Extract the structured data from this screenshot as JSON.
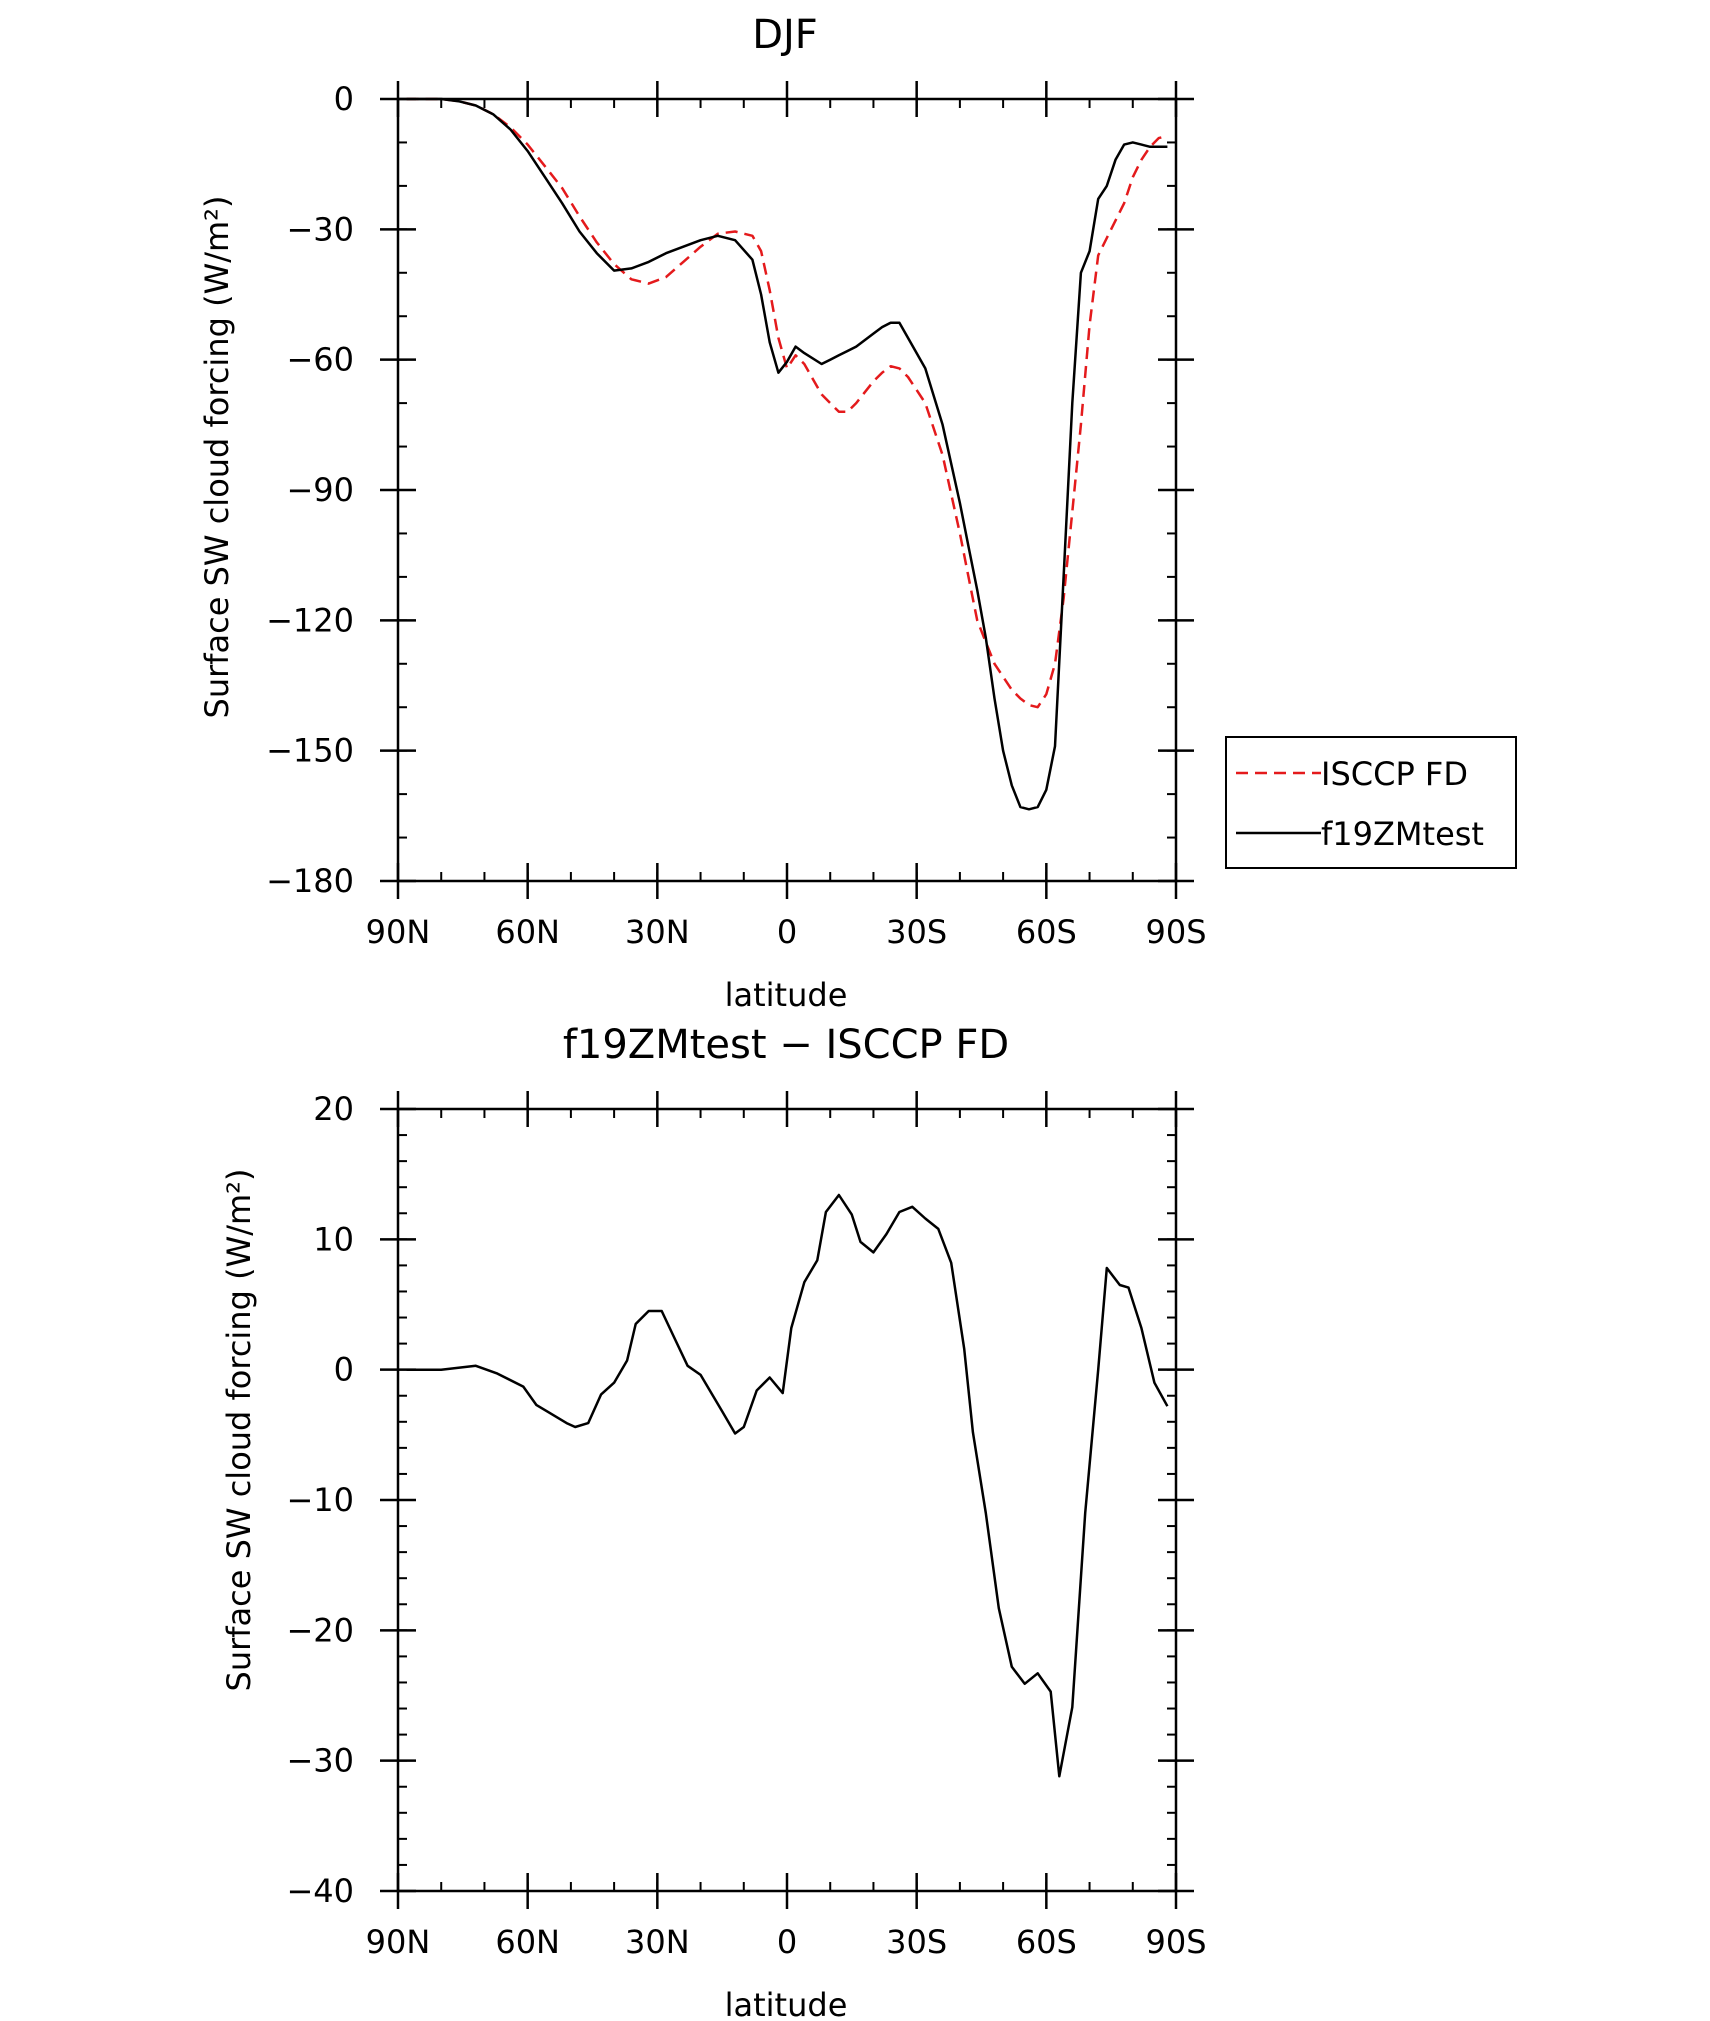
{
  "chart_data": [
    {
      "type": "line",
      "title": "DJF",
      "xlabel": "latitude",
      "ylabel": "Surface SW cloud forcing (W/m²)",
      "xlim": [
        90,
        -90
      ],
      "ylim": [
        -180,
        0
      ],
      "xticks": [
        90,
        60,
        30,
        0,
        -30,
        -60,
        -90
      ],
      "xtick_labels": [
        "90N",
        "60N",
        "30N",
        "0",
        "30S",
        "60S",
        "90S"
      ],
      "yticks": [
        0,
        -30,
        -60,
        -90,
        -120,
        -150,
        -180
      ],
      "ytick_labels": [
        "0",
        "−30",
        "−60",
        "−90",
        "−120",
        "−150",
        "−180"
      ],
      "grid": false,
      "legend": "right",
      "series": [
        {
          "name": "ISCCP FD",
          "color": "#e41a1c",
          "dash": "dashed",
          "x": [
            88,
            84,
            80,
            76,
            72,
            68,
            64,
            60,
            56,
            52,
            48,
            44,
            40,
            36,
            32,
            28,
            24,
            20,
            16,
            12,
            8,
            6,
            4,
            2,
            0,
            -2,
            -4,
            -8,
            -10,
            -12,
            -14,
            -16,
            -20,
            -22,
            -24,
            -26,
            -28,
            -32,
            -36,
            -40,
            -42,
            -44,
            -46,
            -48,
            -50,
            -52,
            -54,
            -56,
            -58,
            -60,
            -62,
            -64,
            -66,
            -68,
            -70,
            -72,
            -74,
            -76,
            -78,
            -80,
            -82,
            -84,
            -86,
            -88
          ],
          "y": [
            0,
            0,
            0,
            -0.5,
            -1.5,
            -3.5,
            -6.5,
            -10.5,
            -15.5,
            -20.5,
            -27,
            -33,
            -38,
            -41.5,
            -42.5,
            -41,
            -37.5,
            -34,
            -31,
            -30.5,
            -31.5,
            -35,
            -44,
            -55,
            -62,
            -59,
            -61,
            -68,
            -70,
            -72,
            -72,
            -70,
            -65,
            -63,
            -61.5,
            -62,
            -64,
            -70,
            -82,
            -100,
            -110,
            -120,
            -125,
            -130,
            -133,
            -136,
            -138,
            -139.5,
            -140,
            -137,
            -130,
            -115,
            -95,
            -75,
            -52,
            -36,
            -32,
            -28,
            -24,
            -18,
            -14,
            -11,
            -9,
            -8.5
          ]
        },
        {
          "name": "f19ZMtest",
          "color": "#000000",
          "dash": "solid",
          "x": [
            88,
            84,
            80,
            76,
            72,
            68,
            64,
            60,
            56,
            52,
            48,
            44,
            40,
            36,
            32,
            28,
            24,
            20,
            16,
            12,
            8,
            6,
            4,
            2,
            0,
            -2,
            -4,
            -8,
            -10,
            -12,
            -14,
            -16,
            -20,
            -22,
            -24,
            -26,
            -28,
            -32,
            -36,
            -40,
            -42,
            -44,
            -46,
            -48,
            -50,
            -52,
            -54,
            -56,
            -58,
            -60,
            -62,
            -64,
            -66,
            -68,
            -70,
            -72,
            -74,
            -76,
            -78,
            -80,
            -82,
            -84,
            -86,
            -88
          ],
          "y": [
            0,
            0,
            0,
            -0.5,
            -1.5,
            -3.5,
            -7,
            -12,
            -18,
            -24,
            -30.5,
            -35.5,
            -39.5,
            -39,
            -37.5,
            -35.5,
            -34,
            -32.5,
            -31.5,
            -32.5,
            -37,
            -45,
            -56,
            -63,
            -60.5,
            -57,
            -58.5,
            -61,
            -60,
            -59,
            -58,
            -57,
            -54,
            -52.5,
            -51.5,
            -51.5,
            -55,
            -62,
            -75,
            -93,
            -103,
            -113,
            -124,
            -138,
            -150,
            -158,
            -163,
            -163.5,
            -163,
            -159,
            -149,
            -110,
            -70,
            -40,
            -35,
            -23,
            -20,
            -14,
            -10.5,
            -10,
            -10.5,
            -11,
            -11,
            -11
          ]
        }
      ]
    },
    {
      "type": "line",
      "title": "f19ZMtest − ISCCP FD",
      "xlabel": "latitude",
      "ylabel": "Surface SW cloud forcing (W/m²)",
      "xlim": [
        90,
        -90
      ],
      "ylim": [
        -40,
        20
      ],
      "xticks": [
        90,
        60,
        30,
        0,
        -30,
        -60,
        -90
      ],
      "xtick_labels": [
        "90N",
        "60N",
        "30N",
        "0",
        "30S",
        "60S",
        "90S"
      ],
      "yticks": [
        20,
        10,
        0,
        -10,
        -20,
        -30,
        -40
      ],
      "ytick_labels": [
        "20",
        "10",
        "0",
        "−10",
        "−20",
        "−30",
        "−40"
      ],
      "grid": false,
      "series": [
        {
          "color": "#000000",
          "dash": "solid",
          "x": [
            88,
            80,
            72,
            67,
            61,
            58,
            55,
            51,
            49,
            46,
            43,
            40,
            37,
            35,
            32,
            29,
            26,
            23,
            20,
            15,
            12,
            10,
            7,
            4,
            1,
            -1,
            -4,
            -7,
            -9,
            -12,
            -15,
            -17,
            -20,
            -23,
            -26,
            -29,
            -32,
            -35,
            -38,
            -41,
            -43,
            -46,
            -49,
            -52,
            -55,
            -58,
            -61,
            -63,
            -66,
            -69,
            -72,
            -74,
            -77,
            -79,
            -82,
            -85,
            -88
          ],
          "y": [
            0,
            0,
            0.3,
            -0.3,
            -1.3,
            -2.7,
            -3.3,
            -4.1,
            -4.4,
            -4.1,
            -1.9,
            -1,
            0.7,
            3.5,
            4.5,
            4.5,
            2.4,
            0.3,
            -0.4,
            -3.2,
            -4.9,
            -4.4,
            -1.6,
            -0.6,
            -1.8,
            3.2,
            6.7,
            8.4,
            12.1,
            13.4,
            11.9,
            9.8,
            9,
            10.4,
            12.1,
            12.5,
            11.6,
            10.8,
            8.2,
            1.6,
            -4.8,
            -11,
            -18.3,
            -22.8,
            -24.1,
            -23.3,
            -24.7,
            -31.2,
            -25.9,
            -11,
            0,
            7.8,
            6.5,
            6.3,
            3.2,
            -1,
            -2.8
          ]
        }
      ]
    }
  ]
}
